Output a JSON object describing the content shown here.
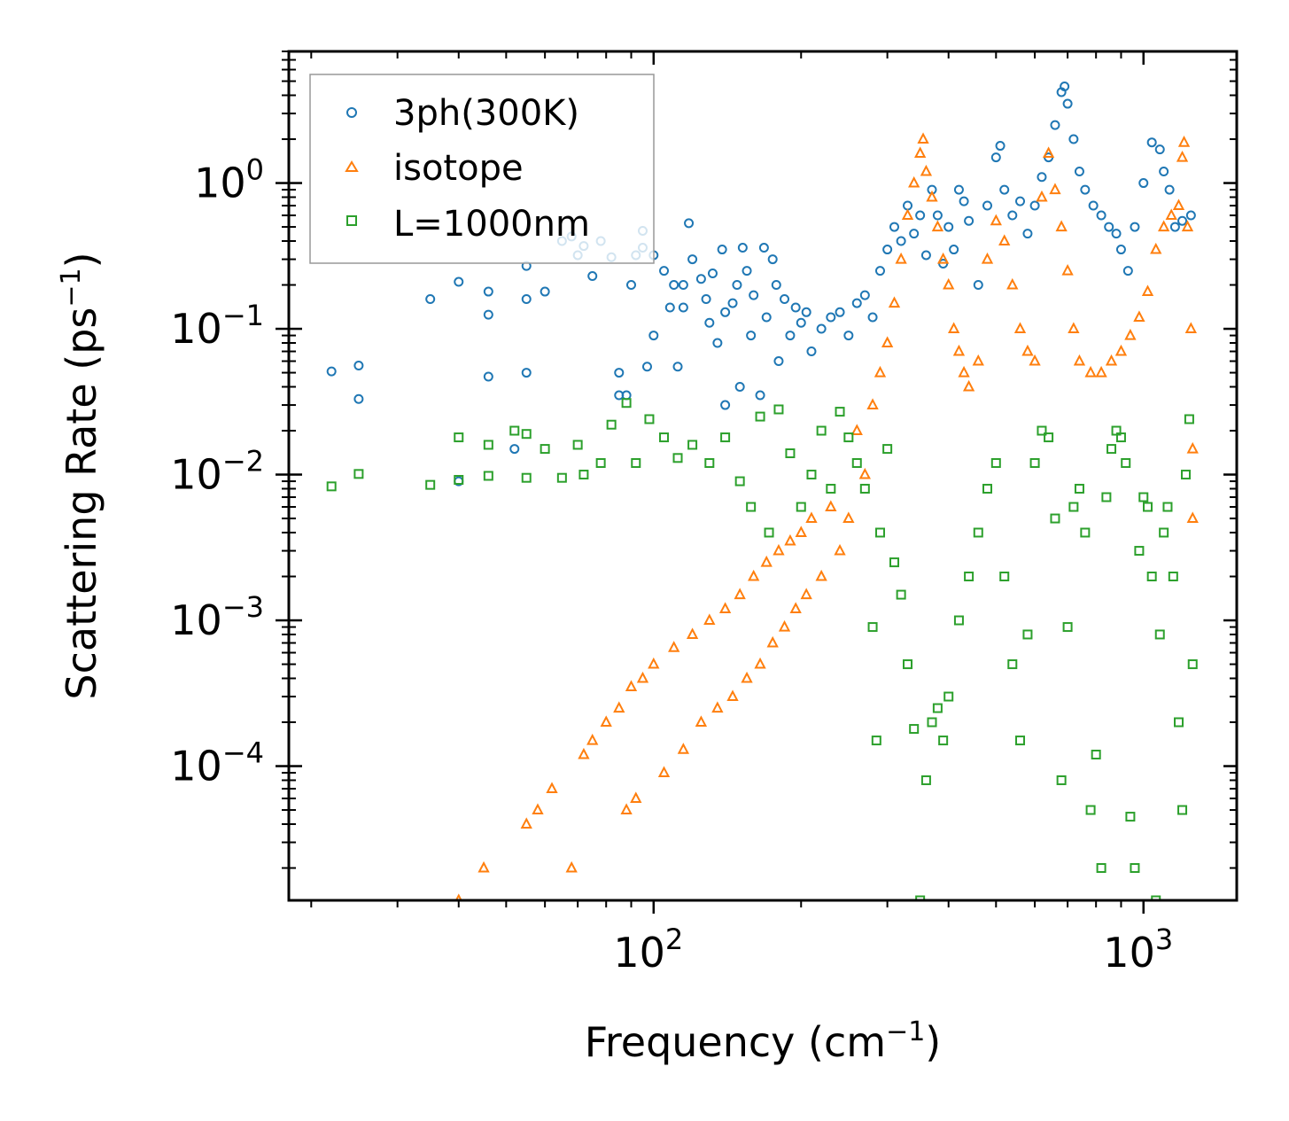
{
  "chart_data": {
    "type": "scatter",
    "title": "",
    "xlabel": "Frequency (cm",
    "xlabel_sup": "−1",
    "xlabel_close": ")",
    "ylabel": "Scattering Rate (ps",
    "ylabel_sup": "−1",
    "ylabel_close": ")",
    "xscale": "log",
    "yscale": "log",
    "xlim": [
      18,
      1550
    ],
    "ylim": [
      1.2e-05,
      8.0
    ],
    "x_ticks": [
      {
        "value": 100,
        "base": "10",
        "exp": "2"
      },
      {
        "value": 1000,
        "base": "10",
        "exp": "3"
      }
    ],
    "y_ticks": [
      {
        "value": 1,
        "base": "10",
        "exp": "0"
      },
      {
        "value": 0.1,
        "base": "10",
        "exp": "−1"
      },
      {
        "value": 0.01,
        "base": "10",
        "exp": "−2"
      },
      {
        "value": 0.001,
        "base": "10",
        "exp": "−3"
      },
      {
        "value": 0.0001,
        "base": "10",
        "exp": "−4"
      }
    ],
    "legend_position": "top-left",
    "series": [
      {
        "name": "3ph(300K)",
        "marker": "circle",
        "color": "#1f77b4",
        "points": [
          [
            22,
            0.051
          ],
          [
            25,
            0.056
          ],
          [
            25,
            0.033
          ],
          [
            35,
            0.16
          ],
          [
            40,
            0.21
          ],
          [
            40,
            0.009
          ],
          [
            46,
            0.18
          ],
          [
            46,
            0.125
          ],
          [
            46,
            0.047
          ],
          [
            52,
            0.015
          ],
          [
            55,
            0.27
          ],
          [
            55,
            0.05
          ],
          [
            55,
            0.16
          ],
          [
            60,
            0.18
          ],
          [
            65,
            0.4
          ],
          [
            68,
            0.43
          ],
          [
            70,
            0.32
          ],
          [
            72,
            0.37
          ],
          [
            75,
            0.23
          ],
          [
            78,
            0.4
          ],
          [
            82,
            0.31
          ],
          [
            85,
            0.035
          ],
          [
            85,
            0.05
          ],
          [
            88,
            0.035
          ],
          [
            90,
            0.2
          ],
          [
            92,
            0.32
          ],
          [
            95,
            0.36
          ],
          [
            95,
            0.47
          ],
          [
            97,
            0.055
          ],
          [
            100,
            0.09
          ],
          [
            100,
            0.32
          ],
          [
            105,
            0.25
          ],
          [
            108,
            0.14
          ],
          [
            110,
            0.2
          ],
          [
            112,
            0.055
          ],
          [
            115,
            0.2
          ],
          [
            115,
            0.14
          ],
          [
            118,
            0.53
          ],
          [
            120,
            0.3
          ],
          [
            125,
            0.22
          ],
          [
            128,
            0.16
          ],
          [
            130,
            0.11
          ],
          [
            132,
            0.24
          ],
          [
            135,
            0.08
          ],
          [
            138,
            0.35
          ],
          [
            140,
            0.03
          ],
          [
            140,
            0.13
          ],
          [
            145,
            0.15
          ],
          [
            148,
            0.2
          ],
          [
            150,
            0.04
          ],
          [
            152,
            0.36
          ],
          [
            155,
            0.25
          ],
          [
            158,
            0.09
          ],
          [
            160,
            0.17
          ],
          [
            165,
            0.035
          ],
          [
            168,
            0.36
          ],
          [
            170,
            0.12
          ],
          [
            175,
            0.3
          ],
          [
            178,
            0.2
          ],
          [
            180,
            0.06
          ],
          [
            185,
            0.16
          ],
          [
            190,
            0.09
          ],
          [
            195,
            0.14
          ],
          [
            200,
            0.11
          ],
          [
            205,
            0.13
          ],
          [
            210,
            0.07
          ],
          [
            220,
            0.1
          ],
          [
            230,
            0.12
          ],
          [
            240,
            0.13
          ],
          [
            250,
            0.09
          ],
          [
            260,
            0.15
          ],
          [
            270,
            0.17
          ],
          [
            280,
            0.12
          ],
          [
            290,
            0.25
          ],
          [
            300,
            0.35
          ],
          [
            310,
            0.5
          ],
          [
            320,
            0.4
          ],
          [
            330,
            0.7
          ],
          [
            340,
            0.45
          ],
          [
            350,
            0.6
          ],
          [
            360,
            0.32
          ],
          [
            370,
            0.9
          ],
          [
            380,
            0.6
          ],
          [
            390,
            0.28
          ],
          [
            400,
            0.5
          ],
          [
            410,
            0.35
          ],
          [
            420,
            0.9
          ],
          [
            430,
            0.75
          ],
          [
            440,
            0.55
          ],
          [
            460,
            0.2
          ],
          [
            480,
            0.7
          ],
          [
            500,
            1.5
          ],
          [
            510,
            1.8
          ],
          [
            520,
            0.9
          ],
          [
            540,
            0.6
          ],
          [
            560,
            0.75
          ],
          [
            580,
            0.45
          ],
          [
            600,
            0.7
          ],
          [
            620,
            1.1
          ],
          [
            640,
            1.5
          ],
          [
            660,
            2.5
          ],
          [
            680,
            4.2
          ],
          [
            690,
            4.6
          ],
          [
            700,
            3.5
          ],
          [
            720,
            2.0
          ],
          [
            740,
            1.2
          ],
          [
            760,
            0.9
          ],
          [
            790,
            0.7
          ],
          [
            820,
            0.6
          ],
          [
            850,
            0.5
          ],
          [
            880,
            0.45
          ],
          [
            900,
            0.35
          ],
          [
            930,
            0.25
          ],
          [
            960,
            0.5
          ],
          [
            1000,
            1.0
          ],
          [
            1040,
            1.9
          ],
          [
            1080,
            1.7
          ],
          [
            1100,
            1.2
          ],
          [
            1130,
            0.9
          ],
          [
            1160,
            0.5
          ],
          [
            1200,
            0.55
          ],
          [
            1250,
            0.6
          ]
        ]
      },
      {
        "name": "isotope",
        "marker": "triangle",
        "color": "#ff7f0e",
        "points": [
          [
            40,
            1.2e-05
          ],
          [
            45,
            2e-05
          ],
          [
            55,
            4e-05
          ],
          [
            58,
            5e-05
          ],
          [
            62,
            7e-05
          ],
          [
            68,
            2e-05
          ],
          [
            72,
            0.00012
          ],
          [
            75,
            0.00015
          ],
          [
            80,
            0.0002
          ],
          [
            85,
            0.00025
          ],
          [
            88,
            5e-05
          ],
          [
            90,
            0.00035
          ],
          [
            92,
            6e-05
          ],
          [
            95,
            0.0004
          ],
          [
            100,
            0.0005
          ],
          [
            105,
            9e-05
          ],
          [
            110,
            0.00065
          ],
          [
            115,
            0.00013
          ],
          [
            120,
            0.0008
          ],
          [
            125,
            0.0002
          ],
          [
            130,
            0.001
          ],
          [
            135,
            0.00025
          ],
          [
            140,
            0.0012
          ],
          [
            145,
            0.0003
          ],
          [
            150,
            0.0015
          ],
          [
            155,
            0.0004
          ],
          [
            160,
            0.002
          ],
          [
            165,
            0.0005
          ],
          [
            170,
            0.0025
          ],
          [
            175,
            0.0007
          ],
          [
            180,
            0.003
          ],
          [
            185,
            0.0009
          ],
          [
            190,
            0.0035
          ],
          [
            195,
            0.0012
          ],
          [
            200,
            0.004
          ],
          [
            205,
            0.0015
          ],
          [
            210,
            0.005
          ],
          [
            220,
            0.002
          ],
          [
            230,
            0.006
          ],
          [
            240,
            0.003
          ],
          [
            250,
            0.005
          ],
          [
            260,
            0.02
          ],
          [
            270,
            0.01
          ],
          [
            280,
            0.03
          ],
          [
            290,
            0.05
          ],
          [
            300,
            0.08
          ],
          [
            310,
            0.15
          ],
          [
            320,
            0.3
          ],
          [
            330,
            0.6
          ],
          [
            340,
            1.0
          ],
          [
            350,
            1.6
          ],
          [
            355,
            2.0
          ],
          [
            360,
            1.2
          ],
          [
            370,
            0.8
          ],
          [
            380,
            0.5
          ],
          [
            390,
            0.3
          ],
          [
            400,
            0.2
          ],
          [
            410,
            0.1
          ],
          [
            420,
            0.07
          ],
          [
            430,
            0.05
          ],
          [
            440,
            0.04
          ],
          [
            460,
            0.06
          ],
          [
            480,
            0.3
          ],
          [
            500,
            0.55
          ],
          [
            520,
            0.4
          ],
          [
            540,
            0.2
          ],
          [
            560,
            0.1
          ],
          [
            580,
            0.07
          ],
          [
            600,
            0.06
          ],
          [
            620,
            0.8
          ],
          [
            640,
            1.6
          ],
          [
            660,
            0.9
          ],
          [
            680,
            0.5
          ],
          [
            700,
            0.25
          ],
          [
            720,
            0.1
          ],
          [
            740,
            0.06
          ],
          [
            780,
            0.05
          ],
          [
            820,
            0.05
          ],
          [
            860,
            0.06
          ],
          [
            900,
            0.07
          ],
          [
            940,
            0.09
          ],
          [
            980,
            0.12
          ],
          [
            1020,
            0.18
          ],
          [
            1060,
            0.35
          ],
          [
            1100,
            0.5
          ],
          [
            1140,
            0.6
          ],
          [
            1180,
            0.7
          ],
          [
            1200,
            1.5
          ],
          [
            1210,
            1.9
          ],
          [
            1230,
            0.5
          ],
          [
            1250,
            0.1
          ],
          [
            1260,
            0.015
          ],
          [
            1260,
            0.005
          ]
        ]
      },
      {
        "name": "L=1000nm",
        "marker": "square",
        "color": "#2ca02c",
        "points": [
          [
            22,
            0.0083
          ],
          [
            25,
            0.0101
          ],
          [
            35,
            0.0085
          ],
          [
            40,
            0.018
          ],
          [
            40,
            0.0092
          ],
          [
            46,
            0.0098
          ],
          [
            46,
            0.016
          ],
          [
            52,
            0.02
          ],
          [
            55,
            0.0095
          ],
          [
            55,
            0.019
          ],
          [
            60,
            0.015
          ],
          [
            65,
            0.0095
          ],
          [
            70,
            0.016
          ],
          [
            72,
            0.01
          ],
          [
            78,
            0.012
          ],
          [
            82,
            0.022
          ],
          [
            88,
            0.031
          ],
          [
            92,
            0.012
          ],
          [
            98,
            0.024
          ],
          [
            105,
            0.018
          ],
          [
            112,
            0.013
          ],
          [
            120,
            0.016
          ],
          [
            130,
            0.012
          ],
          [
            140,
            0.018
          ],
          [
            150,
            0.009
          ],
          [
            158,
            0.006
          ],
          [
            165,
            0.025
          ],
          [
            172,
            0.004
          ],
          [
            180,
            0.028
          ],
          [
            190,
            0.014
          ],
          [
            200,
            0.006
          ],
          [
            210,
            0.01
          ],
          [
            220,
            0.02
          ],
          [
            230,
            0.008
          ],
          [
            240,
            0.027
          ],
          [
            250,
            0.018
          ],
          [
            260,
            0.012
          ],
          [
            270,
            0.008
          ],
          [
            280,
            0.0009
          ],
          [
            285,
            0.00015
          ],
          [
            290,
            0.004
          ],
          [
            300,
            0.015
          ],
          [
            310,
            0.0025
          ],
          [
            320,
            0.0015
          ],
          [
            330,
            0.0005
          ],
          [
            340,
            0.00018
          ],
          [
            350,
            1.2e-05
          ],
          [
            360,
            8e-05
          ],
          [
            370,
            0.0002
          ],
          [
            380,
            0.00025
          ],
          [
            390,
            0.00015
          ],
          [
            400,
            0.0003
          ],
          [
            420,
            0.001
          ],
          [
            440,
            0.002
          ],
          [
            460,
            0.004
          ],
          [
            480,
            0.008
          ],
          [
            500,
            0.012
          ],
          [
            520,
            0.002
          ],
          [
            540,
            0.0005
          ],
          [
            560,
            0.00015
          ],
          [
            580,
            0.0008
          ],
          [
            600,
            0.012
          ],
          [
            620,
            0.02
          ],
          [
            640,
            0.018
          ],
          [
            660,
            0.005
          ],
          [
            680,
            8e-05
          ],
          [
            700,
            0.0009
          ],
          [
            720,
            0.006
          ],
          [
            740,
            0.008
          ],
          [
            760,
            0.004
          ],
          [
            780,
            5e-05
          ],
          [
            800,
            0.00012
          ],
          [
            820,
            2e-05
          ],
          [
            840,
            0.007
          ],
          [
            860,
            0.015
          ],
          [
            880,
            0.02
          ],
          [
            900,
            0.018
          ],
          [
            920,
            0.012
          ],
          [
            940,
            4.5e-05
          ],
          [
            960,
            2e-05
          ],
          [
            980,
            0.003
          ],
          [
            1000,
            0.007
          ],
          [
            1020,
            0.006
          ],
          [
            1040,
            0.002
          ],
          [
            1060,
            1.2e-05
          ],
          [
            1080,
            0.0008
          ],
          [
            1100,
            0.004
          ],
          [
            1120,
            0.006
          ],
          [
            1150,
            0.002
          ],
          [
            1180,
            0.0002
          ],
          [
            1200,
            5e-05
          ],
          [
            1220,
            0.01
          ],
          [
            1240,
            0.024
          ],
          [
            1260,
            0.0005
          ]
        ]
      }
    ]
  }
}
